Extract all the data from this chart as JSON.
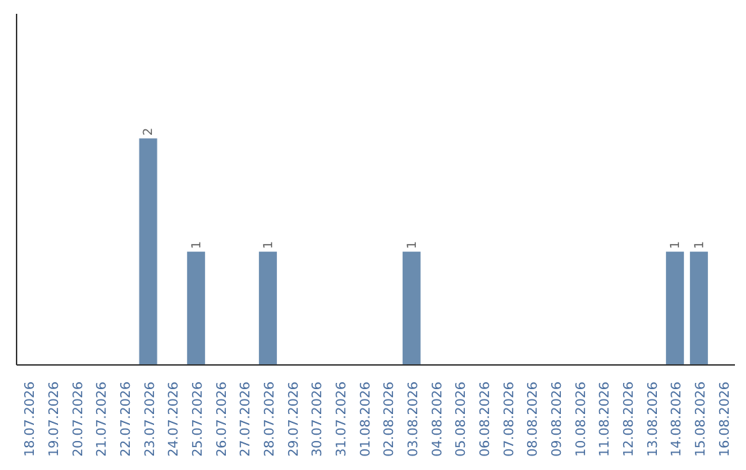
{
  "chart_data": {
    "type": "bar",
    "categories": [
      "18.07.2026",
      "19.07.2026",
      "20.07.2026",
      "21.07.2026",
      "22.07.2026",
      "23.07.2026",
      "24.07.2026",
      "25.07.2026",
      "26.07.2026",
      "27.07.2026",
      "28.07.2026",
      "29.07.2026",
      "30.07.2026",
      "31.07.2026",
      "01.08.2026",
      "02.08.2026",
      "03.08.2026",
      "04.08.2026",
      "05.08.2026",
      "06.08.2026",
      "07.08.2026",
      "08.08.2026",
      "09.08.2026",
      "10.08.2026",
      "11.08.2026",
      "12.08.2026",
      "13.08.2026",
      "14.08.2026",
      "15.08.2026",
      "16.08.2026"
    ],
    "values": [
      null,
      null,
      null,
      null,
      null,
      2,
      null,
      1,
      null,
      null,
      1,
      null,
      null,
      null,
      null,
      null,
      1,
      null,
      null,
      null,
      null,
      null,
      null,
      null,
      null,
      null,
      null,
      1,
      1,
      null
    ],
    "color": "#6a8caf",
    "data_labels": true,
    "tick_labels": "x"
  }
}
